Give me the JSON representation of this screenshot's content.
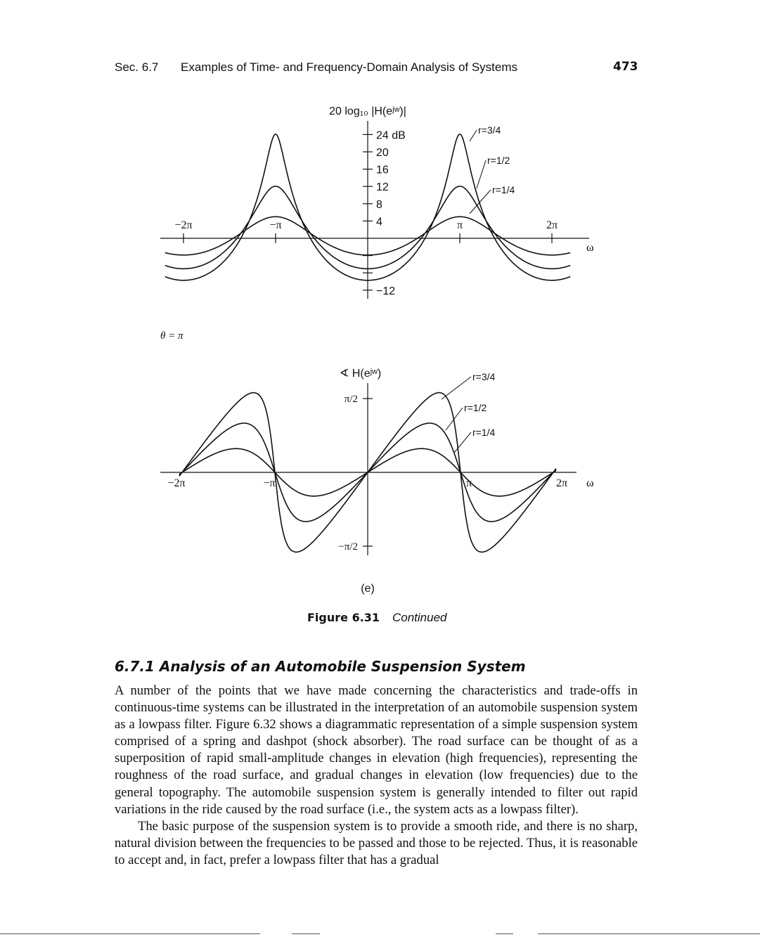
{
  "header": {
    "section": "Sec. 6.7",
    "title": "Examples of Time- and Frequency-Domain Analysis of Systems",
    "page_number": "473"
  },
  "figure": {
    "magnitude_plot": {
      "ylabel": "20 log₁₀ |H(eʲʷ)|",
      "ytick_labels": [
        "24 dB",
        "20",
        "16",
        "12",
        "8",
        "4",
        "−12"
      ],
      "xtick_labels": [
        "−2π",
        "−π",
        "π",
        "2π"
      ],
      "xlabel": "ω",
      "curve_labels": [
        "r=3/4",
        "r=1/2",
        "r=1/4"
      ]
    },
    "theta_label": "θ = π",
    "phase_plot": {
      "ylabel": "∢ H(eʲʷ)",
      "ytick_labels": [
        "π/2",
        "−π/2"
      ],
      "xtick_labels": [
        "−2π",
        "−π",
        "π",
        "2π"
      ],
      "xlabel": "ω",
      "curve_labels": [
        "r=3/4",
        "r=1/2",
        "r=1/4"
      ]
    },
    "panel_label": "(e)",
    "caption_label": "Figure 6.31",
    "caption_text": "Continued"
  },
  "section_heading": "6.7.1 Analysis of an Automobile Suspension System",
  "paragraphs": [
    "A number of the points that we have made concerning the characteristics and trade-offs in continuous-time systems can be illustrated in the interpretation of an automobile suspension system as a lowpass filter. Figure 6.32 shows a diagrammatic representation of a simple suspension system comprised of a spring and dashpot (shock absorber). The road surface can be thought of as a superposition of rapid small-amplitude changes in elevation (high frequencies), representing the roughness of the road surface, and gradual changes in elevation (low frequencies) due to the general topography. The automobile suspension system is generally intended to filter out rapid variations in the ride caused by the road surface (i.e., the system acts as a lowpass filter).",
    "The basic purpose of the suspension system is to provide a smooth ride, and there is no sharp, natural division between the frequencies to be passed and those to be rejected. Thus, it is reasonable to accept and, in fact, prefer a lowpass filter that has a gradual"
  ]
}
